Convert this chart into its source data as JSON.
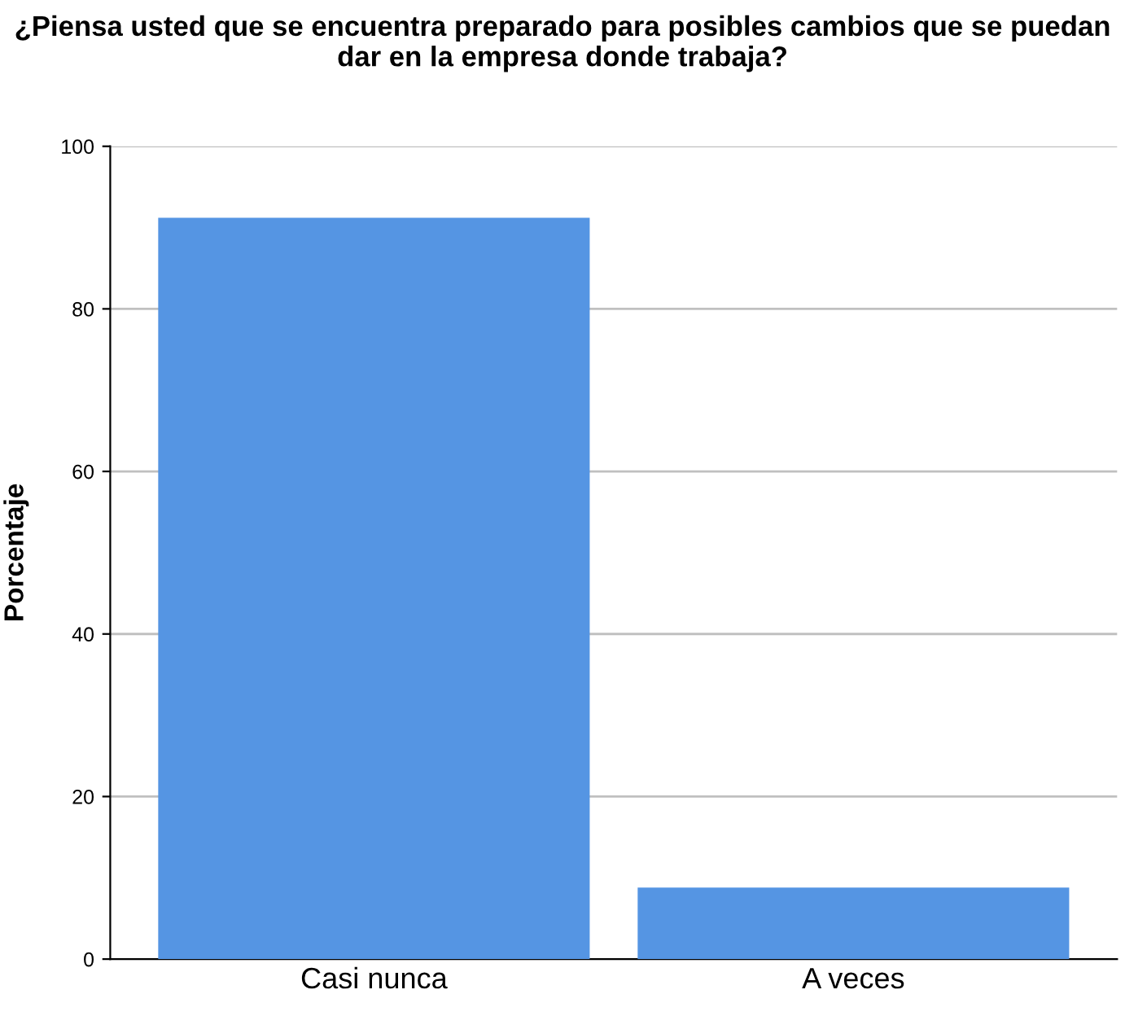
{
  "chart_data": {
    "type": "bar",
    "title": "¿Piensa usted que se encuentra preparado para posibles cambios que se puedan dar en la empresa donde trabaja?",
    "ylabel": "Porcentaje",
    "categories": [
      "Casi nunca",
      "A veces"
    ],
    "values": [
      91.2,
      8.8
    ],
    "color": "#5595e3",
    "ylim": [
      0,
      100
    ],
    "yticks": [
      0,
      20,
      40,
      60,
      80,
      100
    ],
    "grid": "y",
    "legend": false
  }
}
